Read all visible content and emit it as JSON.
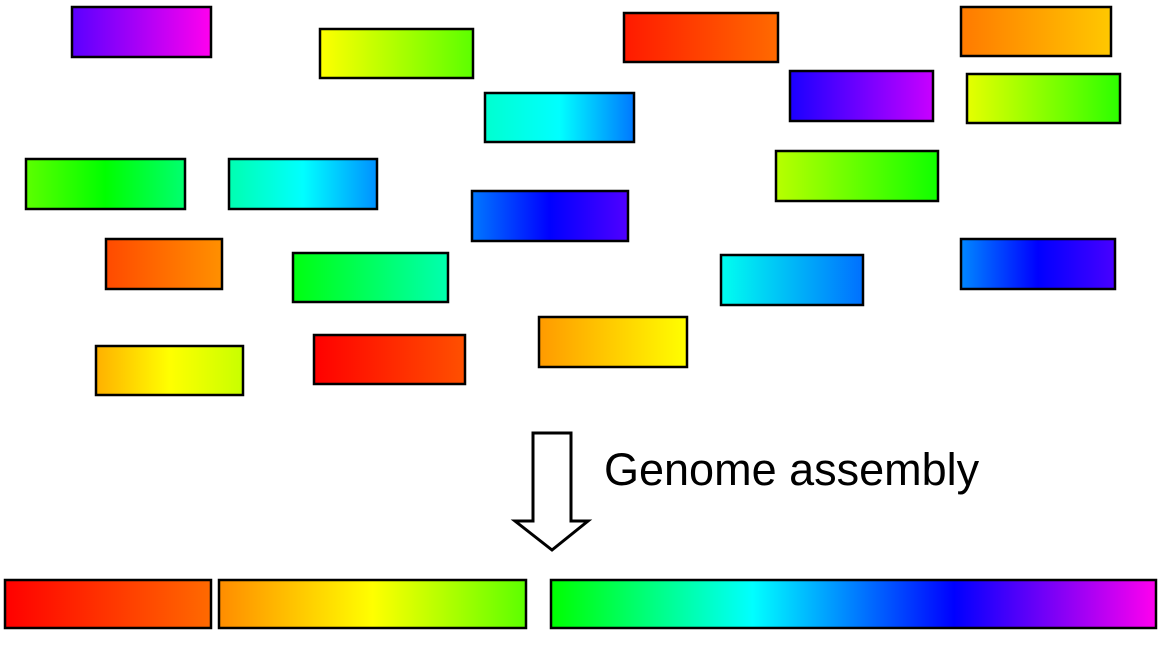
{
  "caption": "Genome assembly",
  "colors": {
    "outline": "#000000",
    "background": "#ffffff",
    "arrow_fill": "#ffffff"
  },
  "reads": [
    {
      "name": "read-violet-magenta",
      "colors": [
        "#5a00ff",
        "#ff00ee"
      ]
    },
    {
      "name": "read-yellow-green",
      "colors": [
        "#ffff00",
        "#5cff00"
      ]
    },
    {
      "name": "read-red-orange",
      "colors": [
        "#ff1a00",
        "#ff6a00"
      ]
    },
    {
      "name": "read-orange-amber",
      "colors": [
        "#ff7a00",
        "#ffc800"
      ]
    },
    {
      "name": "read-blue-violet",
      "colors": [
        "#1a00ff",
        "#c800ff"
      ]
    },
    {
      "name": "read-lime-green",
      "colors": [
        "#e6ff00",
        "#2cff00"
      ]
    },
    {
      "name": "read-aqua-blue",
      "colors": [
        "#00ffd0",
        "#00ffff",
        "#0078ff"
      ]
    },
    {
      "name": "read-green",
      "colors": [
        "#5cff00",
        "#00ff00",
        "#00ff70"
      ]
    },
    {
      "name": "read-teal-blue",
      "colors": [
        "#00ffb0",
        "#00ffff",
        "#0090ff"
      ]
    },
    {
      "name": "read-blue-indigo",
      "colors": [
        "#0078ff",
        "#0000ff",
        "#5000ff"
      ]
    },
    {
      "name": "read-chartreuse-green",
      "colors": [
        "#b8ff00",
        "#10ff00"
      ]
    },
    {
      "name": "read-orange-red",
      "colors": [
        "#ff4a00",
        "#ff9000"
      ]
    },
    {
      "name": "read-green-aqua",
      "colors": [
        "#00ff10",
        "#00ffb0"
      ]
    },
    {
      "name": "read-cyan-blue",
      "colors": [
        "#00fff0",
        "#0070ff"
      ]
    },
    {
      "name": "read-azure-indigo",
      "colors": [
        "#0088ff",
        "#0000ff",
        "#4800ff"
      ]
    },
    {
      "name": "read-amber-yellow",
      "colors": [
        "#ffb000",
        "#ffff00",
        "#c8ff00"
      ]
    },
    {
      "name": "read-red",
      "colors": [
        "#ff0000",
        "#ff5000"
      ]
    },
    {
      "name": "read-orange-yellow",
      "colors": [
        "#ff9a00",
        "#ffff00"
      ]
    }
  ],
  "contigs": [
    {
      "name": "contig-red-orange",
      "colors": [
        "#ff0000",
        "#ff6a00"
      ]
    },
    {
      "name": "contig-orange-yellow-green",
      "colors": [
        "#ff8c00",
        "#ffff00",
        "#5cff00"
      ]
    },
    {
      "name": "contig-green-to-magenta",
      "colors": [
        "#00ff00",
        "#00ffff",
        "#0000ff",
        "#ff00ee"
      ]
    }
  ]
}
